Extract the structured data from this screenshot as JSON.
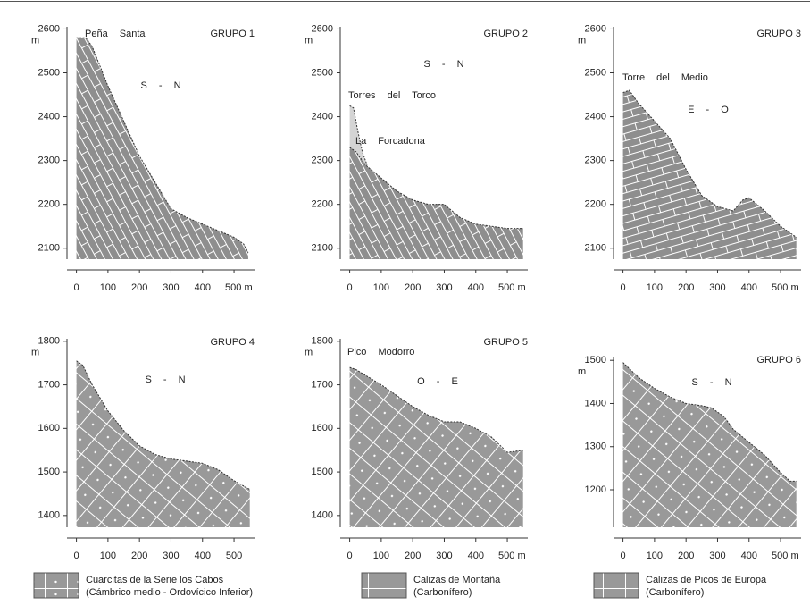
{
  "chart_data": [
    {
      "type": "area",
      "title": "GRUPO 1",
      "annotations": [
        "Peña Santa",
        "S - N"
      ],
      "y_unit": "m",
      "x": [
        0,
        30,
        50,
        100,
        150,
        200,
        250,
        300,
        350,
        400,
        450,
        500,
        530,
        545
      ],
      "values": [
        2580,
        2580,
        2560,
        2470,
        2390,
        2310,
        2250,
        2190,
        2170,
        2155,
        2140,
        2125,
        2110,
        2090
      ],
      "xlim": [
        -30,
        565
      ],
      "ylim": [
        2075,
        2605
      ],
      "xticks": [
        0,
        100,
        200,
        300,
        400,
        {
          "value": 500,
          "label": "500 m"
        }
      ],
      "yticks": [
        2100,
        2200,
        2300,
        2400,
        2500,
        2600
      ]
    },
    {
      "type": "area",
      "title": "GRUPO 2",
      "annotations": [
        "S - N",
        "Torres del Torco",
        "La Forcadona"
      ],
      "y_unit": "m",
      "x": [
        0,
        20,
        50,
        100,
        150,
        200,
        250,
        300,
        350,
        400,
        450,
        500,
        550
      ],
      "values": [
        2330,
        2320,
        2290,
        2260,
        2230,
        2210,
        2200,
        2200,
        2170,
        2155,
        2150,
        2145,
        2145
      ],
      "overlay": {
        "x": [
          0,
          12,
          25,
          40,
          55
        ],
        "values": [
          2425,
          2420,
          2370,
          2320,
          2290
        ]
      },
      "xlim": [
        -30,
        565
      ],
      "ylim": [
        2075,
        2605
      ],
      "xticks": [
        0,
        100,
        200,
        300,
        400,
        {
          "value": 500,
          "label": "500 m"
        }
      ],
      "yticks": [
        2100,
        2200,
        2300,
        2400,
        2500,
        2600
      ]
    },
    {
      "type": "area",
      "title": "GRUPO 3",
      "annotations": [
        "Torre del Medio",
        "E - O"
      ],
      "y_unit": "m",
      "x": [
        0,
        20,
        50,
        100,
        150,
        200,
        250,
        300,
        350,
        380,
        400,
        450,
        500,
        550
      ],
      "values": [
        2455,
        2460,
        2430,
        2390,
        2350,
        2280,
        2220,
        2195,
        2185,
        2210,
        2215,
        2185,
        2150,
        2125
      ],
      "xlim": [
        -30,
        565
      ],
      "ylim": [
        2075,
        2605
      ],
      "xticks": [
        0,
        100,
        200,
        300,
        400,
        {
          "value": 500,
          "label": "500 m"
        }
      ],
      "yticks": [
        2100,
        2200,
        2300,
        2400,
        2500,
        2600
      ]
    },
    {
      "type": "area",
      "title": "GRUPO 4",
      "annotations": [
        "S - N"
      ],
      "y_unit": "m",
      "x": [
        0,
        20,
        50,
        100,
        150,
        200,
        250,
        300,
        350,
        400,
        450,
        500,
        550
      ],
      "values": [
        1755,
        1745,
        1700,
        1640,
        1595,
        1560,
        1540,
        1530,
        1525,
        1520,
        1505,
        1480,
        1460
      ],
      "xlim": [
        -30,
        565
      ],
      "ylim": [
        1373,
        1814
      ],
      "xticks": [
        0,
        100,
        200,
        300,
        400,
        500
      ],
      "yticks": [
        1400,
        1500,
        1600,
        1700,
        1800
      ]
    },
    {
      "type": "area",
      "title": "GRUPO 5",
      "annotations": [
        "Pico Modorro",
        "O - E"
      ],
      "y_unit": "m",
      "x": [
        0,
        20,
        100,
        150,
        200,
        250,
        300,
        350,
        400,
        450,
        500,
        550
      ],
      "values": [
        1740,
        1735,
        1700,
        1675,
        1650,
        1630,
        1615,
        1615,
        1600,
        1580,
        1545,
        1550
      ],
      "xlim": [
        -30,
        565
      ],
      "ylim": [
        1373,
        1814
      ],
      "xticks": [
        0,
        100,
        200,
        300,
        400,
        {
          "value": 500,
          "label": "500 m"
        }
      ],
      "yticks": [
        1400,
        1500,
        1600,
        1700,
        1800
      ]
    },
    {
      "type": "area",
      "title": "GRUPO 6",
      "annotations": [
        "S - N"
      ],
      "y_unit": "m",
      "x": [
        0,
        50,
        100,
        150,
        200,
        250,
        280,
        320,
        350,
        400,
        450,
        500,
        530,
        550
      ],
      "values": [
        1495,
        1460,
        1435,
        1415,
        1400,
        1395,
        1390,
        1370,
        1340,
        1310,
        1280,
        1240,
        1220,
        1220
      ],
      "xlim": [
        -30,
        565
      ],
      "ylim": [
        1113,
        1517
      ],
      "xticks": [
        0,
        100,
        200,
        300,
        400,
        {
          "value": 500,
          "label": "500 m"
        }
      ],
      "yticks": [
        1200,
        1300,
        1400,
        1500
      ]
    }
  ],
  "legend": [
    {
      "lines": [
        "Cuarcitas de la Serie los Cabos",
        "(Cámbrico medio - Ordovícico Inferior)"
      ]
    },
    {
      "lines": [
        "Calizas de Montaña",
        "(Carbonífero)"
      ]
    },
    {
      "lines": [
        "Calizas de Picos de Europa",
        "(Carbonífero)"
      ]
    }
  ]
}
